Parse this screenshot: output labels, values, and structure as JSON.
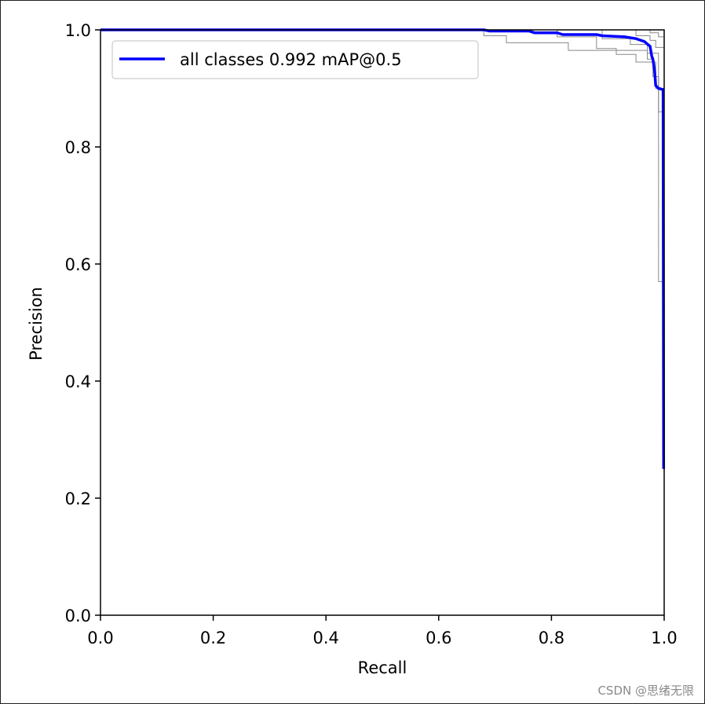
{
  "chart_data": {
    "type": "line",
    "xlabel": "Recall",
    "ylabel": "Precision",
    "xlim": [
      0,
      1
    ],
    "ylim": [
      0,
      1
    ],
    "x_ticks": [
      "0.0",
      "0.2",
      "0.4",
      "0.6",
      "0.8",
      "1.0"
    ],
    "y_ticks": [
      "0.0",
      "0.2",
      "0.4",
      "0.6",
      "0.8",
      "1.0"
    ],
    "grid": false,
    "legend_position": "top-left",
    "series": [
      {
        "name": "all classes 0.992 mAP@0.5",
        "color": "#0000ff",
        "points": [
          [
            0.0,
            1.0
          ],
          [
            0.68,
            1.0
          ],
          [
            0.69,
            0.998
          ],
          [
            0.76,
            0.998
          ],
          [
            0.77,
            0.995
          ],
          [
            0.81,
            0.995
          ],
          [
            0.82,
            0.992
          ],
          [
            0.88,
            0.992
          ],
          [
            0.89,
            0.99
          ],
          [
            0.93,
            0.988
          ],
          [
            0.95,
            0.985
          ],
          [
            0.965,
            0.98
          ],
          [
            0.975,
            0.972
          ],
          [
            0.978,
            0.955
          ],
          [
            0.98,
            0.95
          ],
          [
            0.983,
            0.93
          ],
          [
            0.985,
            0.905
          ],
          [
            0.99,
            0.9
          ],
          [
            0.998,
            0.898
          ],
          [
            0.999,
            0.25
          ]
        ]
      },
      {
        "color": "#888888",
        "points": [
          [
            0.0,
            1.0
          ],
          [
            0.68,
            1.0
          ],
          [
            0.68,
            0.99
          ],
          [
            0.72,
            0.99
          ],
          [
            0.72,
            0.978
          ],
          [
            0.83,
            0.978
          ],
          [
            0.83,
            0.965
          ],
          [
            0.97,
            0.965
          ],
          [
            0.97,
            0.95
          ],
          [
            0.98,
            0.95
          ],
          [
            0.98,
            0.92
          ],
          [
            0.99,
            0.92
          ],
          [
            0.99,
            0.86
          ],
          [
            1.0,
            0.86
          ]
        ]
      },
      {
        "color": "#888888",
        "points": [
          [
            0.0,
            1.0
          ],
          [
            0.81,
            1.0
          ],
          [
            0.81,
            0.988
          ],
          [
            0.88,
            0.988
          ],
          [
            0.88,
            0.968
          ],
          [
            0.915,
            0.968
          ],
          [
            0.915,
            0.958
          ],
          [
            0.95,
            0.958
          ],
          [
            0.95,
            0.945
          ],
          [
            0.985,
            0.945
          ],
          [
            0.985,
            0.9
          ],
          [
            1.0,
            0.9
          ]
        ]
      },
      {
        "color": "#888888",
        "points": [
          [
            0.0,
            1.0
          ],
          [
            0.89,
            1.0
          ],
          [
            0.89,
            0.985
          ],
          [
            0.94,
            0.985
          ],
          [
            0.94,
            0.975
          ],
          [
            0.97,
            0.975
          ],
          [
            0.97,
            0.96
          ],
          [
            0.99,
            0.96
          ],
          [
            0.99,
            0.57
          ],
          [
            1.0,
            0.57
          ]
        ]
      },
      {
        "color": "#888888",
        "points": [
          [
            0.0,
            1.0
          ],
          [
            0.95,
            1.0
          ],
          [
            0.95,
            0.99
          ],
          [
            0.975,
            0.99
          ],
          [
            0.975,
            0.982
          ],
          [
            0.985,
            0.982
          ],
          [
            0.985,
            0.97
          ],
          [
            1.0,
            0.97
          ]
        ]
      },
      {
        "color": "#888888",
        "points": [
          [
            0.0,
            1.0
          ],
          [
            0.975,
            1.0
          ],
          [
            0.975,
            0.995
          ],
          [
            0.99,
            0.995
          ],
          [
            0.99,
            0.988
          ],
          [
            1.0,
            0.988
          ]
        ]
      }
    ]
  },
  "watermark": "CSDN @思绪无限"
}
